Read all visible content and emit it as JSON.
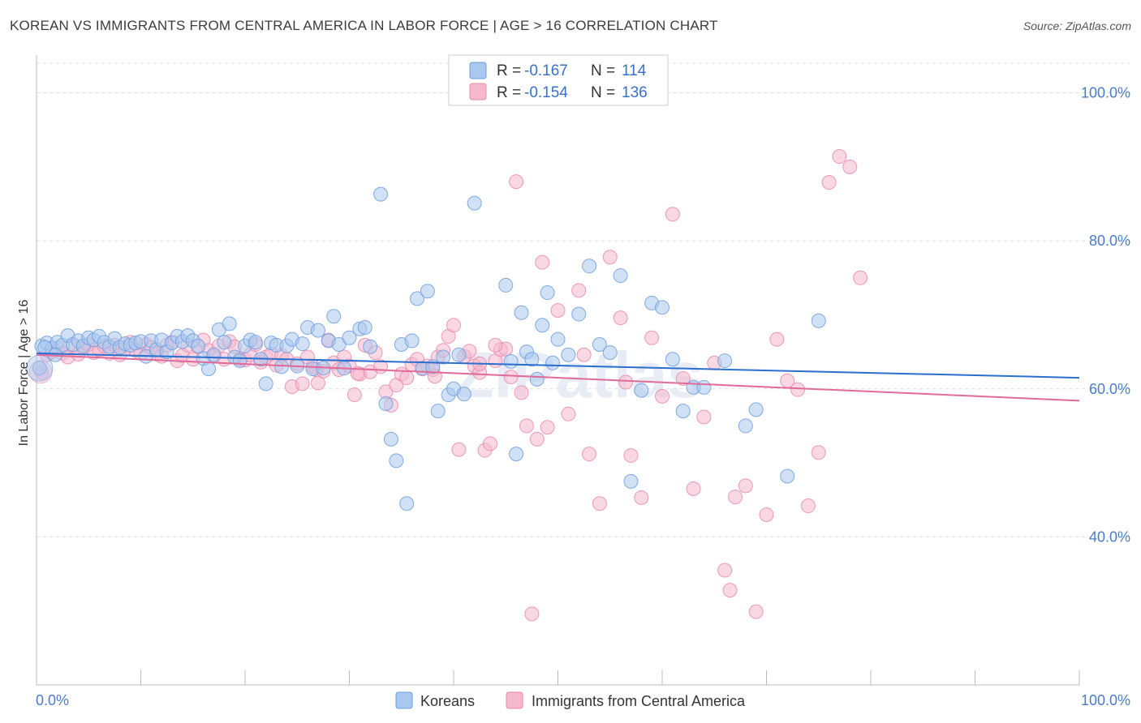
{
  "title": "KOREAN VS IMMIGRANTS FROM CENTRAL AMERICA IN LABOR FORCE | AGE > 16 CORRELATION CHART",
  "source": "Source: ZipAtlas.com",
  "watermark": "ZIPatlas",
  "colors": {
    "koreans_fill": "#a9c8ef",
    "koreans_stroke": "#6c9ee0",
    "koreans_line": "#2a6fce",
    "immigrants_fill": "#f5b8cc",
    "immigrants_stroke": "#ea8aac",
    "immigrants_line": "#e06a98",
    "axis_label": "#4a7cc9",
    "grid": "#dddddd"
  },
  "legend": {
    "rows": [
      {
        "r_label": "R =",
        "r_value": "-0.167",
        "n_label": "N =",
        "n_value": "114",
        "series": "koreans"
      },
      {
        "r_label": "R =",
        "r_value": "-0.154",
        "n_label": "N =",
        "n_value": "136",
        "series": "immigrants"
      }
    ]
  },
  "chart_data": {
    "type": "scatter",
    "title": "KOREAN VS IMMIGRANTS FROM CENTRAL AMERICA IN LABOR FORCE | AGE > 16 CORRELATION CHART",
    "xlabel": "",
    "ylabel": "In Labor Force | Age > 16",
    "xlim": [
      0,
      100
    ],
    "ylim": [
      20,
      104
    ],
    "x_tick_labels": [
      "0.0%",
      "100.0%"
    ],
    "y_ticks": [
      40,
      60,
      80,
      100
    ],
    "y_tick_labels": [
      "40.0%",
      "60.0%",
      "80.0%",
      "100.0%"
    ],
    "grid": true,
    "legend_position": "bottom",
    "series": [
      {
        "name": "Koreans",
        "key": "koreans",
        "R": -0.167,
        "N": 114,
        "trend": {
          "x": [
            0,
            100
          ],
          "y": [
            64.8,
            61.5
          ]
        },
        "points": [
          [
            0.5,
            65.8
          ],
          [
            1.0,
            66.2
          ],
          [
            1.5,
            65.5
          ],
          [
            2.0,
            66.3
          ],
          [
            2.5,
            65.9
          ],
          [
            3.0,
            67.2
          ],
          [
            3.5,
            66.0
          ],
          [
            4.0,
            66.5
          ],
          [
            4.5,
            65.8
          ],
          [
            5.0,
            66.9
          ],
          [
            5.5,
            66.6
          ],
          [
            6.0,
            67.1
          ],
          [
            6.5,
            66.3
          ],
          [
            7.0,
            65.7
          ],
          [
            7.5,
            66.8
          ],
          [
            8.0,
            65.6
          ],
          [
            8.5,
            66.1
          ],
          [
            9.0,
            65.9
          ],
          [
            9.5,
            66.2
          ],
          [
            10.0,
            66.4
          ],
          [
            10.5,
            64.4
          ],
          [
            11.0,
            66.5
          ],
          [
            11.5,
            65.3
          ],
          [
            12.0,
            66.6
          ],
          [
            12.5,
            65.0
          ],
          [
            13.0,
            66.2
          ],
          [
            13.5,
            67.1
          ],
          [
            14.0,
            66.4
          ],
          [
            14.5,
            67.2
          ],
          [
            15.0,
            66.5
          ],
          [
            15.5,
            65.8
          ],
          [
            16.0,
            64.1
          ],
          [
            16.5,
            62.7
          ],
          [
            17.0,
            64.6
          ],
          [
            17.5,
            68.0
          ],
          [
            18.0,
            66.3
          ],
          [
            18.5,
            68.8
          ],
          [
            19.0,
            64.3
          ],
          [
            19.5,
            63.8
          ],
          [
            20.0,
            65.8
          ],
          [
            20.5,
            66.6
          ],
          [
            21.0,
            66.3
          ],
          [
            21.5,
            64.0
          ],
          [
            22.0,
            60.7
          ],
          [
            22.5,
            66.2
          ],
          [
            23.0,
            65.9
          ],
          [
            23.5,
            63.0
          ],
          [
            24.0,
            65.8
          ],
          [
            24.5,
            66.7
          ],
          [
            25.0,
            63.1
          ],
          [
            25.5,
            66.1
          ],
          [
            26.0,
            68.3
          ],
          [
            26.5,
            62.7
          ],
          [
            27.0,
            67.9
          ],
          [
            27.5,
            62.8
          ],
          [
            28.0,
            66.5
          ],
          [
            28.5,
            69.8
          ],
          [
            29.0,
            66.0
          ],
          [
            29.5,
            62.8
          ],
          [
            30.0,
            66.9
          ],
          [
            31.0,
            68.1
          ],
          [
            31.5,
            68.3
          ],
          [
            32.0,
            65.7
          ],
          [
            33.0,
            86.3
          ],
          [
            33.5,
            58.0
          ],
          [
            34.0,
            53.2
          ],
          [
            34.5,
            50.3
          ],
          [
            35.0,
            66.0
          ],
          [
            35.5,
            44.5
          ],
          [
            36.0,
            66.5
          ],
          [
            36.5,
            72.2
          ],
          [
            37.0,
            62.8
          ],
          [
            37.5,
            73.2
          ],
          [
            38.0,
            63.0
          ],
          [
            38.5,
            57.0
          ],
          [
            39.0,
            64.3
          ],
          [
            39.5,
            59.2
          ],
          [
            40.0,
            60.0
          ],
          [
            40.5,
            64.6
          ],
          [
            41.0,
            59.3
          ],
          [
            42.0,
            85.1
          ],
          [
            45.0,
            74.0
          ],
          [
            45.5,
            63.7
          ],
          [
            46.0,
            51.2
          ],
          [
            46.5,
            70.3
          ],
          [
            47.0,
            65.0
          ],
          [
            47.5,
            64.0
          ],
          [
            48.0,
            61.3
          ],
          [
            48.5,
            68.6
          ],
          [
            49.0,
            73.0
          ],
          [
            49.5,
            63.5
          ],
          [
            50.0,
            66.7
          ],
          [
            51.0,
            64.6
          ],
          [
            52.0,
            70.1
          ],
          [
            53.0,
            76.6
          ],
          [
            54.0,
            66.0
          ],
          [
            55.0,
            64.9
          ],
          [
            56.0,
            75.3
          ],
          [
            57.0,
            47.5
          ],
          [
            58.0,
            59.8
          ],
          [
            59.0,
            71.6
          ],
          [
            60.0,
            71.0
          ],
          [
            61.0,
            64.0
          ],
          [
            62.0,
            57.0
          ],
          [
            63.0,
            60.2
          ],
          [
            64.0,
            60.2
          ],
          [
            66.0,
            63.8
          ],
          [
            68.0,
            55.0
          ],
          [
            69.0,
            57.2
          ],
          [
            72.0,
            48.2
          ],
          [
            75.0,
            69.2
          ],
          [
            0.3,
            62.8
          ],
          [
            0.8,
            65.6
          ],
          [
            1.8,
            64.6
          ]
        ]
      },
      {
        "name": "Immigrants from Central America",
        "key": "immigrants",
        "R": -0.154,
        "N": 136,
        "trend": {
          "x": [
            0,
            100
          ],
          "y": [
            64.6,
            58.4
          ]
        },
        "points": [
          [
            0.5,
            62.2
          ],
          [
            1.0,
            64.6
          ],
          [
            1.5,
            65.0
          ],
          [
            2.0,
            65.5
          ],
          [
            2.5,
            64.8
          ],
          [
            3.0,
            64.3
          ],
          [
            3.5,
            65.8
          ],
          [
            4.0,
            64.7
          ],
          [
            4.5,
            65.5
          ],
          [
            5.0,
            66.0
          ],
          [
            5.5,
            64.9
          ],
          [
            6.0,
            65.3
          ],
          [
            6.5,
            65.8
          ],
          [
            7.0,
            64.8
          ],
          [
            7.5,
            65.9
          ],
          [
            8.0,
            64.6
          ],
          [
            8.5,
            65.4
          ],
          [
            9.0,
            66.3
          ],
          [
            9.5,
            65.2
          ],
          [
            10.0,
            64.8
          ],
          [
            10.5,
            66.0
          ],
          [
            11.0,
            65.6
          ],
          [
            11.5,
            64.7
          ],
          [
            12.0,
            64.4
          ],
          [
            12.5,
            65.9
          ],
          [
            13.0,
            66.3
          ],
          [
            13.5,
            63.8
          ],
          [
            14.0,
            64.5
          ],
          [
            14.5,
            65.9
          ],
          [
            15.0,
            64.0
          ],
          [
            15.5,
            65.7
          ],
          [
            16.0,
            66.6
          ],
          [
            16.5,
            65.2
          ],
          [
            17.0,
            64.4
          ],
          [
            17.5,
            65.8
          ],
          [
            18.0,
            64.0
          ],
          [
            18.5,
            66.4
          ],
          [
            19.0,
            65.7
          ],
          [
            19.5,
            64.0
          ],
          [
            20.0,
            63.9
          ],
          [
            20.5,
            64.6
          ],
          [
            21.0,
            66.0
          ],
          [
            21.5,
            63.6
          ],
          [
            22.0,
            64.3
          ],
          [
            22.5,
            64.7
          ],
          [
            23.0,
            63.2
          ],
          [
            23.5,
            64.5
          ],
          [
            24.0,
            64.0
          ],
          [
            24.5,
            60.3
          ],
          [
            25.0,
            63.4
          ],
          [
            25.5,
            60.7
          ],
          [
            26.0,
            64.3
          ],
          [
            26.5,
            63.0
          ],
          [
            27.0,
            60.8
          ],
          [
            27.5,
            62.4
          ],
          [
            28.0,
            66.6
          ],
          [
            28.5,
            63.5
          ],
          [
            29.0,
            62.6
          ],
          [
            29.5,
            64.3
          ],
          [
            30.0,
            63.1
          ],
          [
            30.5,
            59.2
          ],
          [
            31.0,
            62.0
          ],
          [
            31.5,
            65.9
          ],
          [
            32.0,
            62.3
          ],
          [
            32.5,
            64.9
          ],
          [
            33.0,
            63.0
          ],
          [
            33.5,
            59.6
          ],
          [
            34.0,
            57.8
          ],
          [
            34.5,
            60.5
          ],
          [
            35.0,
            62.0
          ],
          [
            35.5,
            61.5
          ],
          [
            36.0,
            63.3
          ],
          [
            36.5,
            64.0
          ],
          [
            37.0,
            62.7
          ],
          [
            37.5,
            63.1
          ],
          [
            38.0,
            62.6
          ],
          [
            38.5,
            64.3
          ],
          [
            39.0,
            65.2
          ],
          [
            39.5,
            67.1
          ],
          [
            40.0,
            68.6
          ],
          [
            40.5,
            51.8
          ],
          [
            41.0,
            64.4
          ],
          [
            41.5,
            65.1
          ],
          [
            42.0,
            63.1
          ],
          [
            42.5,
            62.2
          ],
          [
            43.0,
            51.7
          ],
          [
            43.5,
            52.6
          ],
          [
            44.0,
            63.8
          ],
          [
            44.5,
            65.3
          ],
          [
            45.0,
            65.4
          ],
          [
            46.0,
            88.0
          ],
          [
            46.5,
            59.5
          ],
          [
            47.0,
            55.0
          ],
          [
            48.0,
            53.2
          ],
          [
            48.5,
            77.1
          ],
          [
            49.0,
            54.8
          ],
          [
            50.0,
            70.6
          ],
          [
            51.0,
            56.6
          ],
          [
            52.0,
            73.3
          ],
          [
            53.0,
            51.2
          ],
          [
            54.0,
            44.5
          ],
          [
            55.0,
            77.8
          ],
          [
            56.0,
            69.6
          ],
          [
            57.0,
            51.0
          ],
          [
            58.0,
            45.3
          ],
          [
            59.0,
            66.9
          ],
          [
            60.0,
            59.0
          ],
          [
            61.0,
            83.6
          ],
          [
            62.0,
            61.4
          ],
          [
            63.0,
            46.5
          ],
          [
            64.0,
            56.2
          ],
          [
            65.0,
            63.5
          ],
          [
            66.0,
            35.5
          ],
          [
            66.5,
            32.8
          ],
          [
            67.0,
            45.4
          ],
          [
            68.0,
            46.9
          ],
          [
            69.0,
            29.9
          ],
          [
            70.0,
            43.0
          ],
          [
            71.0,
            66.7
          ],
          [
            72.0,
            61.1
          ],
          [
            73.0,
            59.9
          ],
          [
            74.0,
            44.2
          ],
          [
            75.0,
            51.4
          ],
          [
            76.0,
            87.9
          ],
          [
            77.0,
            91.4
          ],
          [
            78.0,
            90.0
          ],
          [
            79.0,
            75.0
          ],
          [
            47.5,
            29.6
          ],
          [
            45.5,
            61.6
          ],
          [
            44.0,
            65.9
          ],
          [
            52.5,
            64.6
          ],
          [
            56.5,
            60.9
          ],
          [
            42.5,
            63.4
          ],
          [
            38.2,
            61.7
          ],
          [
            30.8,
            62.1
          ],
          [
            26.8,
            62.6
          ]
        ]
      }
    ]
  },
  "bottom_legend": [
    {
      "label": "Koreans",
      "series": "koreans"
    },
    {
      "label": "Immigrants from Central America",
      "series": "immigrants"
    }
  ]
}
